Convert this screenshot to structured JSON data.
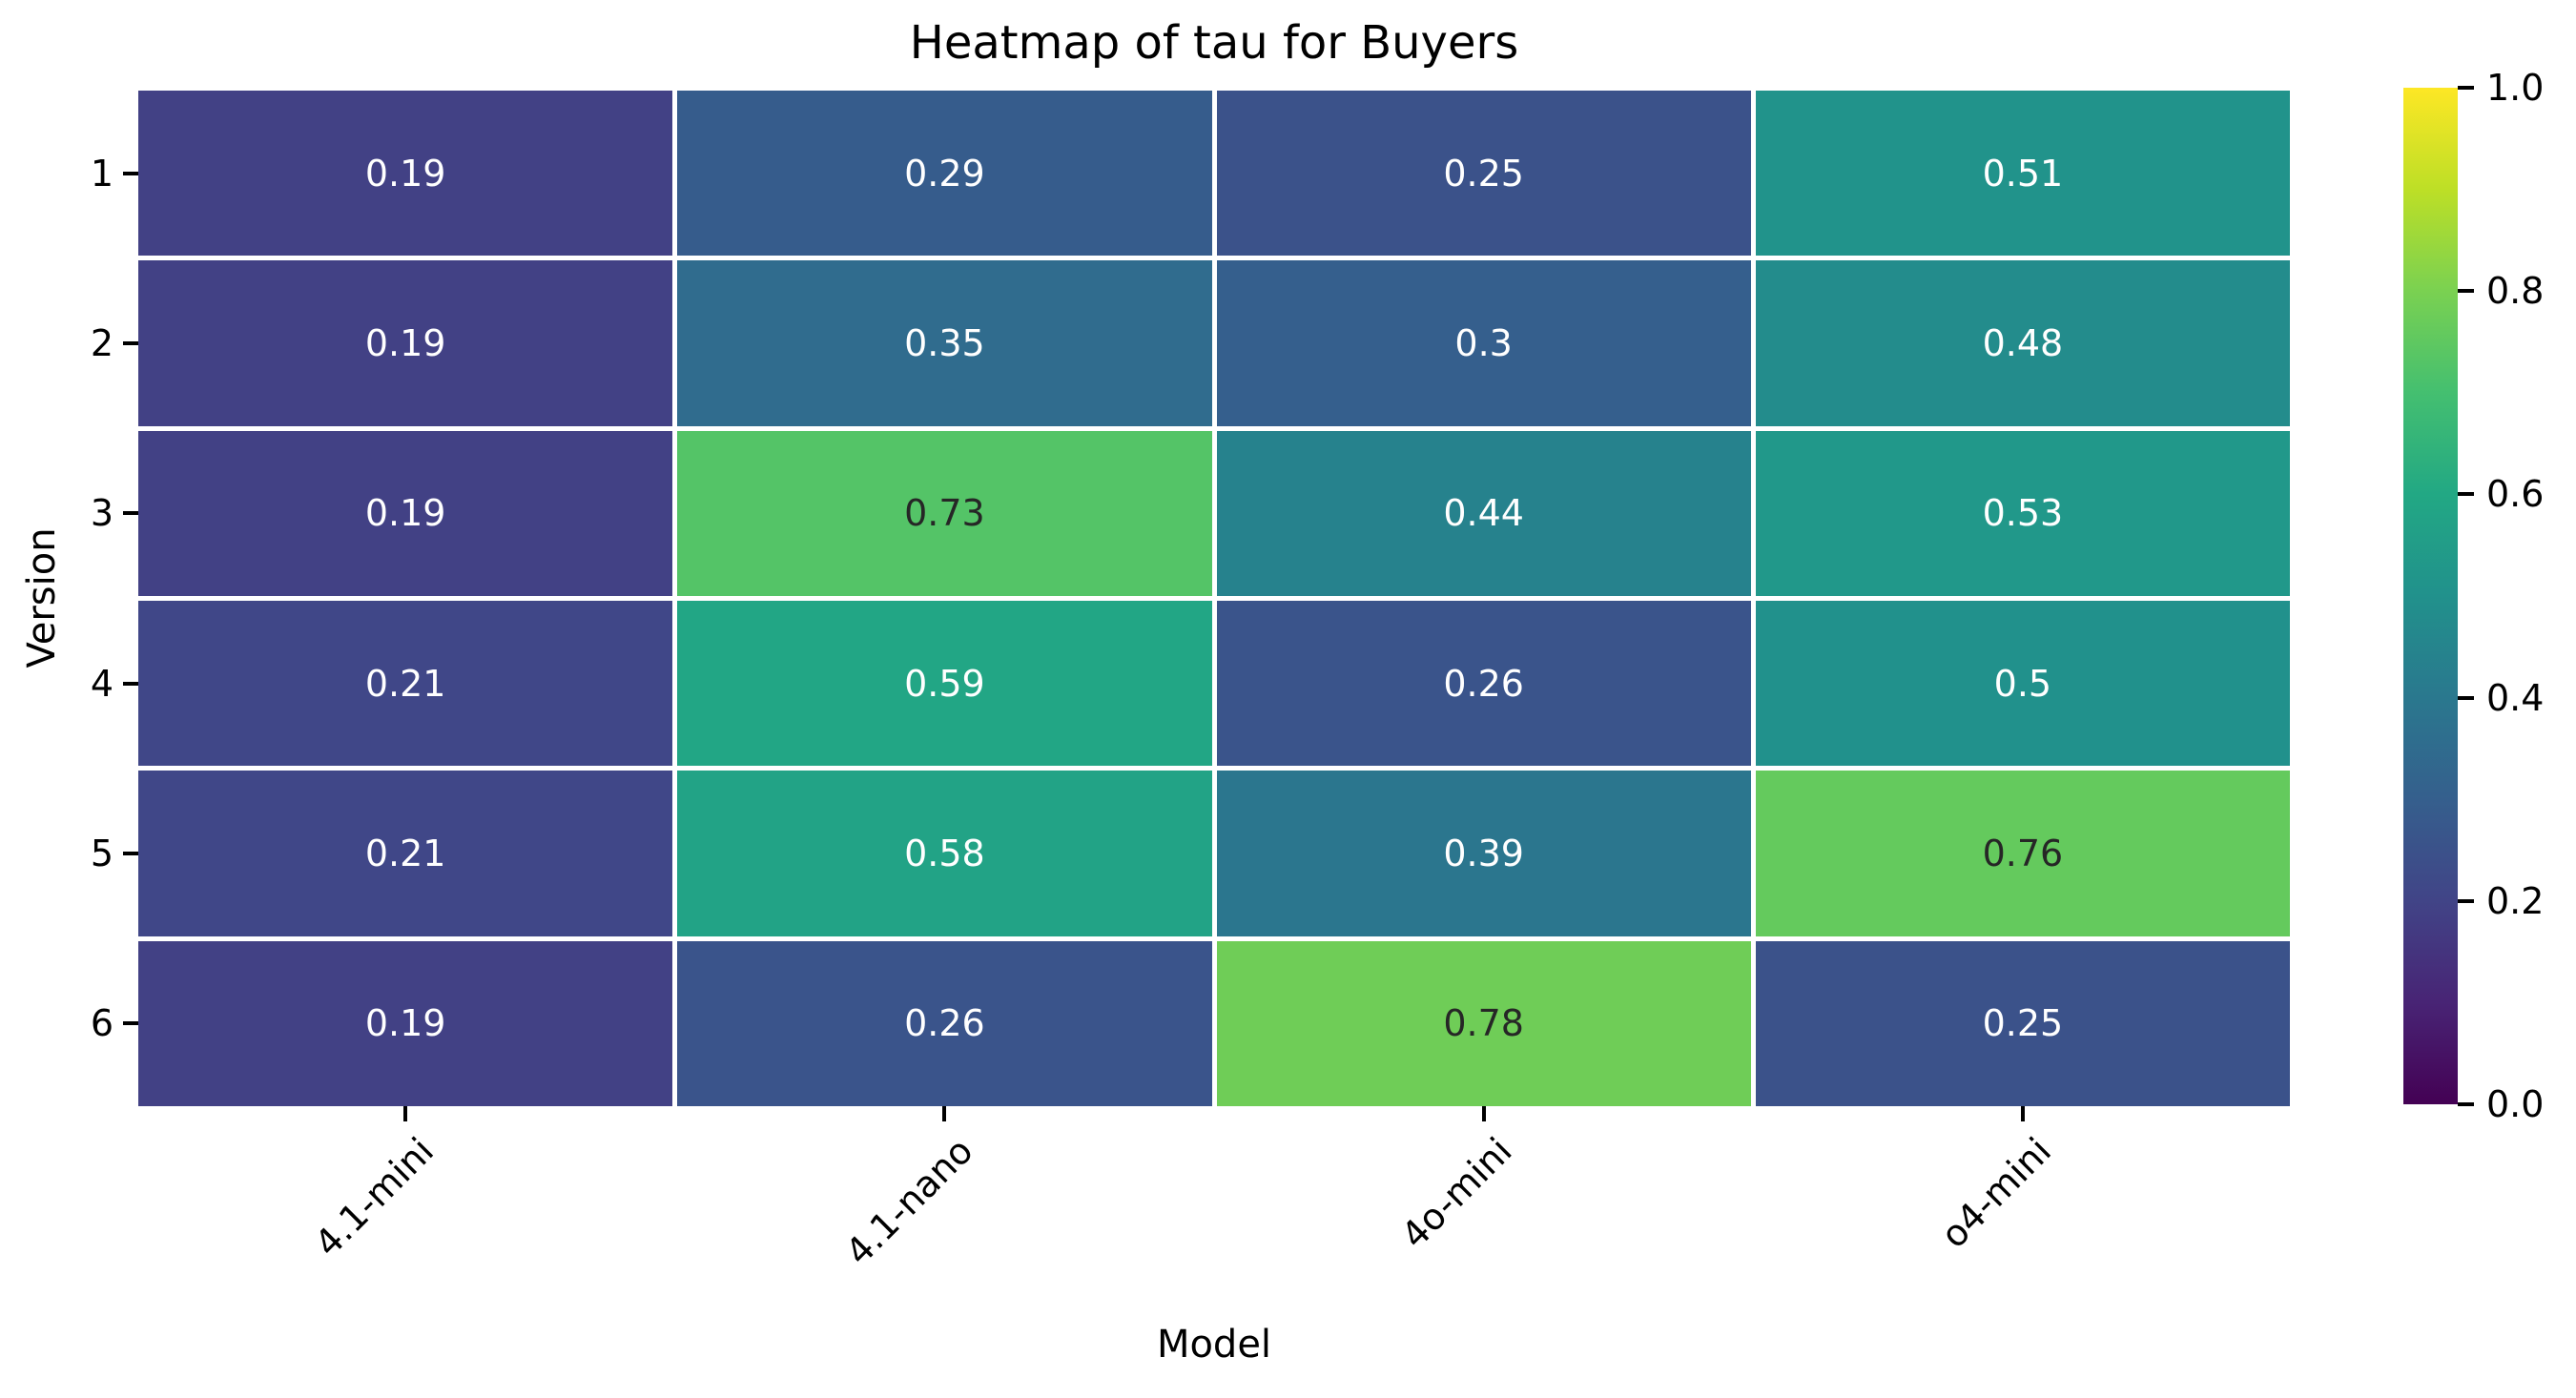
{
  "chart_data": {
    "type": "heatmap",
    "title": "Heatmap of tau for Buyers",
    "xlabel": "Model",
    "ylabel": "Version",
    "columns": [
      "4.1-mini",
      "4.1-nano",
      "4o-mini",
      "o4-mini"
    ],
    "rows": [
      "1",
      "2",
      "3",
      "4",
      "5",
      "6"
    ],
    "values": [
      [
        0.19,
        0.29,
        0.25,
        0.51
      ],
      [
        0.19,
        0.35,
        0.3,
        0.48
      ],
      [
        0.19,
        0.73,
        0.44,
        0.53
      ],
      [
        0.21,
        0.59,
        0.26,
        0.5
      ],
      [
        0.21,
        0.58,
        0.39,
        0.76
      ],
      [
        0.19,
        0.26,
        0.78,
        0.25
      ]
    ],
    "vmin": 0.0,
    "vmax": 1.0,
    "grid_line_color": "#ffffff",
    "annotation_text_colors": {
      "light": "#ffffff",
      "dark": "#262626"
    },
    "colorbar": {
      "position": "right",
      "tick_labels": [
        "0.0",
        "0.2",
        "0.4",
        "0.6",
        "0.8",
        "1.0"
      ]
    },
    "colormap": {
      "name": "viridis",
      "stops": [
        [
          0.0,
          "#440154"
        ],
        [
          0.1,
          "#482475"
        ],
        [
          0.2,
          "#414487"
        ],
        [
          0.3,
          "#355f8d"
        ],
        [
          0.4,
          "#2a788e"
        ],
        [
          0.5,
          "#21918c"
        ],
        [
          0.6,
          "#22a884"
        ],
        [
          0.7,
          "#44bf70"
        ],
        [
          0.8,
          "#7ad151"
        ],
        [
          0.9,
          "#bddf26"
        ],
        [
          1.0,
          "#fde725"
        ]
      ]
    }
  }
}
